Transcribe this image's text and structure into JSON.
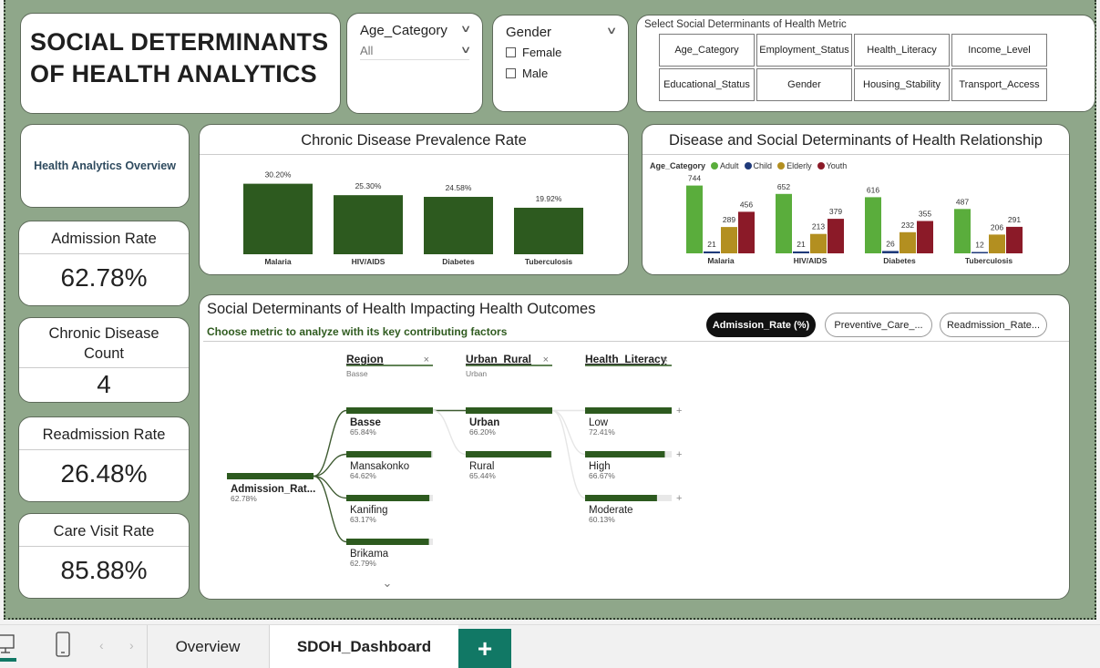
{
  "title": "SOCIAL DETERMINANTS OF HEALTH ANALYTICS",
  "age_slicer": {
    "label": "Age_Category",
    "value": "All"
  },
  "gender_slicer": {
    "label": "Gender",
    "options": [
      "Female",
      "Male"
    ]
  },
  "metric_selector": {
    "title": "Select Social Determinants of Health Metric",
    "buttons": [
      "Age_Category",
      "Employment_Status",
      "Health_Literacy",
      "Income_Level",
      "Educational_Status",
      "Gender",
      "Housing_Stability",
      "Transport_Access"
    ]
  },
  "overview_label": "Health Analytics Overview",
  "kpis": {
    "admission": {
      "label": "Admission Rate",
      "value": "62.78%"
    },
    "chronic": {
      "label": "Chronic Disease Count",
      "value": "4"
    },
    "readmission": {
      "label": "Readmission Rate",
      "value": "26.48%"
    },
    "care": {
      "label": "Care Visit Rate",
      "value": "85.88%"
    }
  },
  "colors": {
    "dark_green": "#2d5a1f",
    "adult": "#5aad3c",
    "child": "#1f3a7a",
    "elderly": "#b38f20",
    "youth": "#8b1a28",
    "background": "#8fa78a",
    "accent": "#117865"
  },
  "chart_data": [
    {
      "type": "bar",
      "title": "Chronic Disease Prevalence Rate",
      "categories": [
        "Malaria",
        "HIV/AIDS",
        "Diabetes",
        "Tuberculosis"
      ],
      "values": [
        30.2,
        25.3,
        24.58,
        19.92
      ],
      "data_labels": [
        "30.20%",
        "25.30%",
        "24.58%",
        "19.92%"
      ],
      "ylim": [
        0,
        32
      ]
    },
    {
      "type": "bar",
      "title": "Disease and Social Determinants of Health Relationship",
      "legend_title": "Age_Category",
      "legend_position": "top-left",
      "categories": [
        "Malaria",
        "HIV/AIDS",
        "Diabetes",
        "Tuberculosis"
      ],
      "series": [
        {
          "name": "Adult",
          "values": [
            744,
            652,
            616,
            487
          ]
        },
        {
          "name": "Child",
          "values": [
            21,
            21,
            26,
            12
          ]
        },
        {
          "name": "Elderly",
          "values": [
            289,
            213,
            232,
            206
          ]
        },
        {
          "name": "Youth",
          "values": [
            456,
            379,
            355,
            291
          ]
        }
      ],
      "ylim": [
        0,
        800
      ]
    }
  ],
  "decomp": {
    "title": "Social Determinants of Health Impacting Health Outcomes",
    "subtitle": "Choose metric to analyze with its key contributing factors",
    "tabs": [
      "Admission_Rate (%)",
      "Preventive_Care_...",
      "Readmission_Rate..."
    ],
    "root": {
      "label": "Admission_Rat...",
      "value": "62.78%",
      "fraction": 0.6278
    },
    "levels": [
      {
        "header": "Region",
        "selected": "Basse",
        "items": [
          {
            "label": "Basse",
            "value": "65.84%",
            "fraction": 0.6584
          },
          {
            "label": "Mansakonko",
            "value": "64.62%",
            "fraction": 0.6462
          },
          {
            "label": "Kanifing",
            "value": "63.17%",
            "fraction": 0.6317
          },
          {
            "label": "Brikama",
            "value": "62.79%",
            "fraction": 0.6279
          }
        ]
      },
      {
        "header": "Urban_Rural",
        "selected": "Urban",
        "items": [
          {
            "label": "Urban",
            "value": "66.20%",
            "fraction": 0.662
          },
          {
            "label": "Rural",
            "value": "65.44%",
            "fraction": 0.6544
          }
        ]
      },
      {
        "header": "Health_Literacy",
        "selected": "",
        "items": [
          {
            "label": "Low",
            "value": "72.41%",
            "fraction": 0.7241
          },
          {
            "label": "High",
            "value": "66.67%",
            "fraction": 0.6667
          },
          {
            "label": "Moderate",
            "value": "60.13%",
            "fraction": 0.6013
          }
        ]
      }
    ]
  },
  "pages": {
    "tabs": [
      "Overview",
      "SDOH_Dashboard"
    ],
    "active": "SDOH_Dashboard"
  }
}
